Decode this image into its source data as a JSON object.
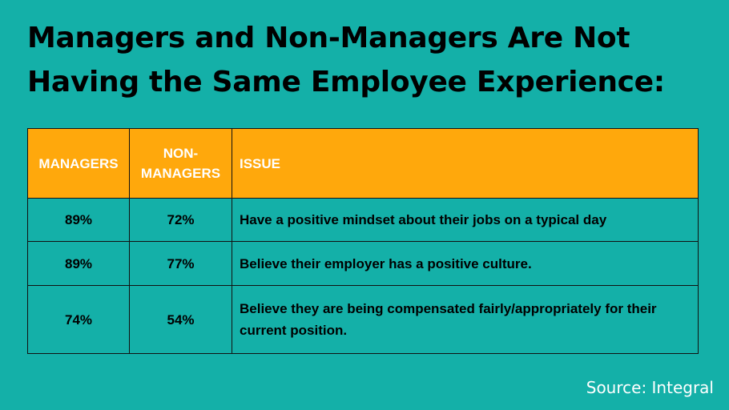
{
  "title": {
    "line1": "Managers and Non-Managers Are Not",
    "line2": "Having the Same Employee Experience:"
  },
  "table": {
    "headers": {
      "managers": "MANAGERS",
      "non_managers": "NON-\nMANAGERS",
      "issue": "ISSUE"
    },
    "rows": [
      {
        "managers": "89%",
        "non_managers": "72%",
        "issue": "Have a positive mindset about their jobs on a typical day"
      },
      {
        "managers": "89%",
        "non_managers": "77%",
        "issue": "Believe their employer has a positive culture."
      },
      {
        "managers": "74%",
        "non_managers": "54%",
        "issue": "Believe they are being compensated fairly/appropriately for their current position."
      }
    ]
  },
  "source": "Source: Integral",
  "colors": {
    "background": "#14b0a8",
    "header_fill": "#ffa80c",
    "header_text": "#ffffff",
    "body_text": "#000000"
  }
}
